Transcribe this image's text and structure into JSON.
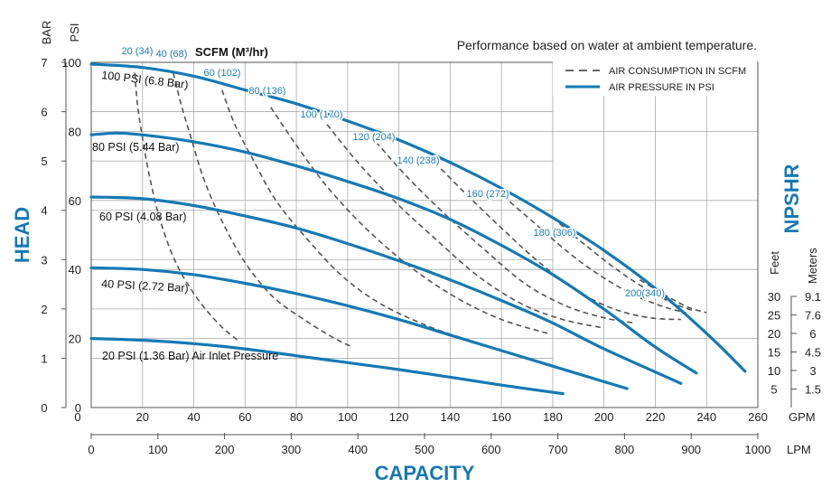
{
  "chart_data": {
    "type": "line",
    "title": "Performance based on water at ambient temperature.",
    "xlabel": "CAPACITY",
    "ylabel": "HEAD",
    "ylabel_right": "NPSHR",
    "scfm_label": "SCFM (M³/hr)",
    "x_gpm": {
      "unit": "GPM",
      "range": [
        0,
        260
      ],
      "ticks": [
        0,
        20,
        40,
        60,
        80,
        100,
        120,
        140,
        160,
        180,
        200,
        220,
        240,
        260
      ]
    },
    "x_lpm": {
      "unit": "LPM",
      "range": [
        0,
        1000
      ],
      "ticks": [
        0,
        100,
        200,
        300,
        400,
        500,
        600,
        700,
        800,
        900,
        1000
      ]
    },
    "y_psi": {
      "unit": "PSI",
      "range": [
        0,
        100
      ],
      "ticks": [
        0,
        20,
        40,
        60,
        80,
        100
      ]
    },
    "y_bar": {
      "unit": "BAR",
      "range": [
        0,
        7
      ],
      "ticks": [
        0,
        1,
        2,
        3,
        4,
        5,
        6,
        7
      ]
    },
    "npshr_feet": {
      "unit": "Feet",
      "ticks": [
        5,
        10,
        15,
        20,
        25,
        30
      ]
    },
    "npshr_meters": {
      "unit": "Meters",
      "ticks": [
        "1.5",
        "3",
        "4.5",
        "6",
        "7.6",
        "9.1"
      ]
    },
    "legend": {
      "position": "top-right",
      "items": [
        {
          "label": "AIR CONSUMPTION IN SCFM",
          "style": "dashed",
          "color": "#333333"
        },
        {
          "label": "AIR PRESSURE IN PSI",
          "style": "solid",
          "color": "#1579b4"
        }
      ]
    },
    "colors": {
      "pressure": "#1579b4",
      "air": "#555555",
      "air_label": "#1d7bb5"
    },
    "series": [
      {
        "name": "100 PSI (6.8 Bar)",
        "x": [
          0,
          20,
          40,
          60,
          80,
          100,
          120,
          140,
          160,
          180,
          200,
          220,
          240,
          255
        ],
        "y": [
          99.5,
          98.5,
          96,
          92,
          88,
          83,
          77.5,
          71,
          63.5,
          55,
          45.5,
          34.5,
          21.5,
          10.5
        ]
      },
      {
        "name": "80 PSI (5.44 Bar)",
        "x": [
          0,
          10,
          20,
          40,
          60,
          80,
          100,
          120,
          140,
          160,
          180,
          200,
          220,
          236
        ],
        "y": [
          79,
          79.5,
          79,
          77,
          74,
          70,
          65.5,
          60.5,
          54.5,
          47,
          38.5,
          28.5,
          17.5,
          10
        ]
      },
      {
        "name": "60 PSI (4.08 Bar)",
        "x": [
          0,
          20,
          40,
          60,
          80,
          100,
          120,
          140,
          160,
          180,
          200,
          230
        ],
        "y": [
          61,
          60.5,
          58.5,
          55.5,
          52,
          47.5,
          42.5,
          37,
          31,
          24.5,
          17,
          7
        ]
      },
      {
        "name": "40 PSI (2.72 Bar)",
        "x": [
          0,
          20,
          40,
          60,
          80,
          100,
          120,
          140,
          160,
          180,
          200,
          209
        ],
        "y": [
          40.5,
          40,
          38.5,
          36,
          33,
          29.5,
          25.5,
          21,
          16.5,
          12,
          7.5,
          5.5
        ]
      },
      {
        "name": "20 PSI (1.36 Bar) Air Inlet Pressure",
        "x": [
          0,
          20,
          40,
          60,
          80,
          100,
          120,
          140,
          160,
          184
        ],
        "y": [
          20,
          19.5,
          18.5,
          17,
          15,
          13,
          11,
          8.8,
          6.5,
          4
        ]
      }
    ],
    "air_series": [
      {
        "name": "20 (34)",
        "x": [
          17,
          18,
          20,
          23,
          27,
          33,
          41,
          50,
          58
        ],
        "y": [
          97,
          88,
          78,
          66,
          54,
          42,
          32,
          24,
          19
        ]
      },
      {
        "name": "40 (68)",
        "x": [
          32,
          35,
          39,
          44,
          51,
          60,
          71,
          84,
          95,
          102
        ],
        "y": [
          97,
          88,
          78,
          66,
          54,
          42,
          32,
          25,
          20,
          17.5
        ]
      },
      {
        "name": "60 (102)",
        "x": [
          51,
          56,
          63,
          72,
          84,
          98,
          113,
          130,
          145,
          151
        ],
        "y": [
          92,
          82,
          72,
          60,
          49,
          38,
          30,
          24,
          20,
          18.5
        ]
      },
      {
        "name": "80 (136)",
        "x": [
          70,
          80,
          92,
          107,
          124,
          142,
          160,
          178
        ],
        "y": [
          87,
          76,
          64,
          52,
          41,
          32,
          25.5,
          21.5
        ]
      },
      {
        "name": "100 (170)",
        "x": [
          92,
          104,
          118,
          134,
          151,
          168,
          184,
          200
        ],
        "y": [
          82,
          71,
          60,
          49,
          38,
          30,
          25.5,
          23
        ]
      },
      {
        "name": "120 (204)",
        "x": [
          111,
          123,
          138,
          153,
          169,
          185,
          200,
          212
        ],
        "y": [
          77,
          67,
          56,
          46,
          36,
          29.5,
          26,
          24.5
        ]
      },
      {
        "name": "140 (238)",
        "x": [
          134,
          146,
          160,
          174,
          189,
          204,
          218,
          230
        ],
        "y": [
          71,
          62,
          52,
          42.5,
          34,
          28.5,
          26,
          25.5
        ]
      },
      {
        "name": "160 (272)",
        "x": [
          158,
          172,
          186,
          199,
          212,
          224,
          232
        ],
        "y": [
          63,
          54,
          45,
          38,
          32.5,
          29,
          27.5
        ]
      },
      {
        "name": "180 (306)",
        "x": [
          180,
          192,
          204,
          215,
          226,
          235
        ],
        "y": [
          55,
          47.5,
          40.5,
          35,
          30.5,
          28
        ]
      },
      {
        "name": "200(340)",
        "x": [
          214,
          224,
          233,
          240
        ],
        "y": [
          37,
          32.5,
          29,
          27.5
        ]
      }
    ]
  }
}
